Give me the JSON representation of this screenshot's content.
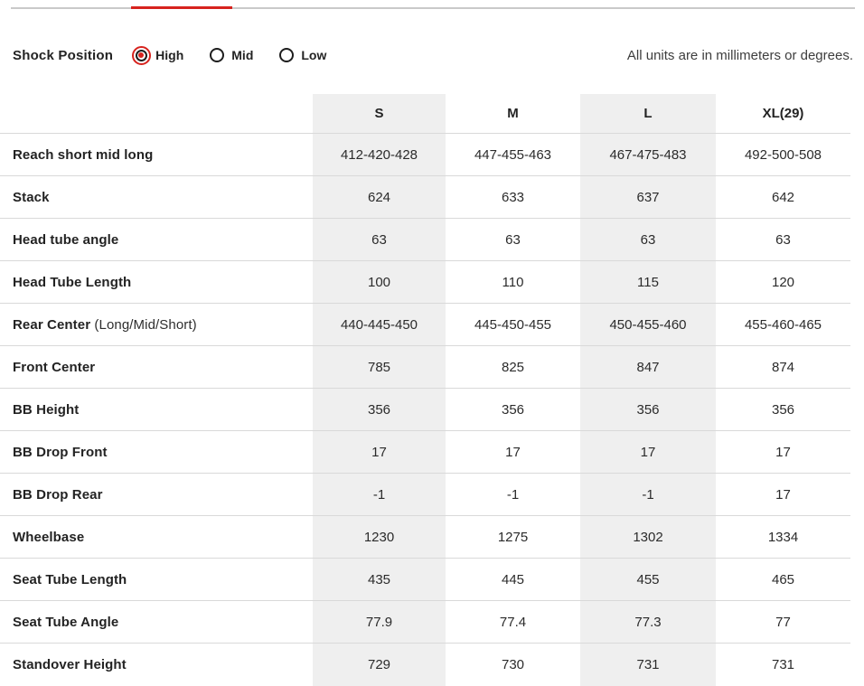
{
  "colors": {
    "accent_red": "#d7231e",
    "column_stripe": "#efefef",
    "separator": "#d9d9d9",
    "tabbar_gray": "#c9c9c9"
  },
  "controls": {
    "label": "Shock Position",
    "options": [
      {
        "label": "High",
        "selected": true
      },
      {
        "label": "Mid",
        "selected": false
      },
      {
        "label": "Low",
        "selected": false
      }
    ],
    "units_note": "All units are in millimeters or degrees."
  },
  "table": {
    "columns": [
      "S",
      "M",
      "L",
      "XL(29)"
    ],
    "rows": [
      {
        "label": "Reach short mid long",
        "suffix": "",
        "values": [
          "412-420-428",
          "447-455-463",
          "467-475-483",
          "492-500-508"
        ]
      },
      {
        "label": "Stack",
        "suffix": "",
        "values": [
          "624",
          "633",
          "637",
          "642"
        ]
      },
      {
        "label": "Head tube angle",
        "suffix": "",
        "values": [
          "63",
          "63",
          "63",
          "63"
        ]
      },
      {
        "label": "Head Tube Length",
        "suffix": "",
        "values": [
          "100",
          "110",
          "115",
          "120"
        ]
      },
      {
        "label": "Rear Center",
        "suffix": " (Long/Mid/Short)",
        "values": [
          "440-445-450",
          "445-450-455",
          "450-455-460",
          "455-460-465"
        ]
      },
      {
        "label": "Front Center",
        "suffix": "",
        "values": [
          "785",
          "825",
          "847",
          "874"
        ]
      },
      {
        "label": "BB Height",
        "suffix": "",
        "values": [
          "356",
          "356",
          "356",
          "356"
        ]
      },
      {
        "label": "BB Drop Front",
        "suffix": "",
        "values": [
          "17",
          "17",
          "17",
          "17"
        ]
      },
      {
        "label": "BB Drop Rear",
        "suffix": "",
        "values": [
          "-1",
          "-1",
          "-1",
          "17"
        ]
      },
      {
        "label": "Wheelbase",
        "suffix": "",
        "values": [
          "1230",
          "1275",
          "1302",
          "1334"
        ]
      },
      {
        "label": "Seat Tube Length",
        "suffix": "",
        "values": [
          "435",
          "445",
          "455",
          "465"
        ]
      },
      {
        "label": "Seat Tube Angle",
        "suffix": "",
        "values": [
          "77.9",
          "77.4",
          "77.3",
          "77"
        ]
      },
      {
        "label": "Standover Height",
        "suffix": "",
        "values": [
          "729",
          "730",
          "731",
          "731"
        ]
      }
    ]
  }
}
